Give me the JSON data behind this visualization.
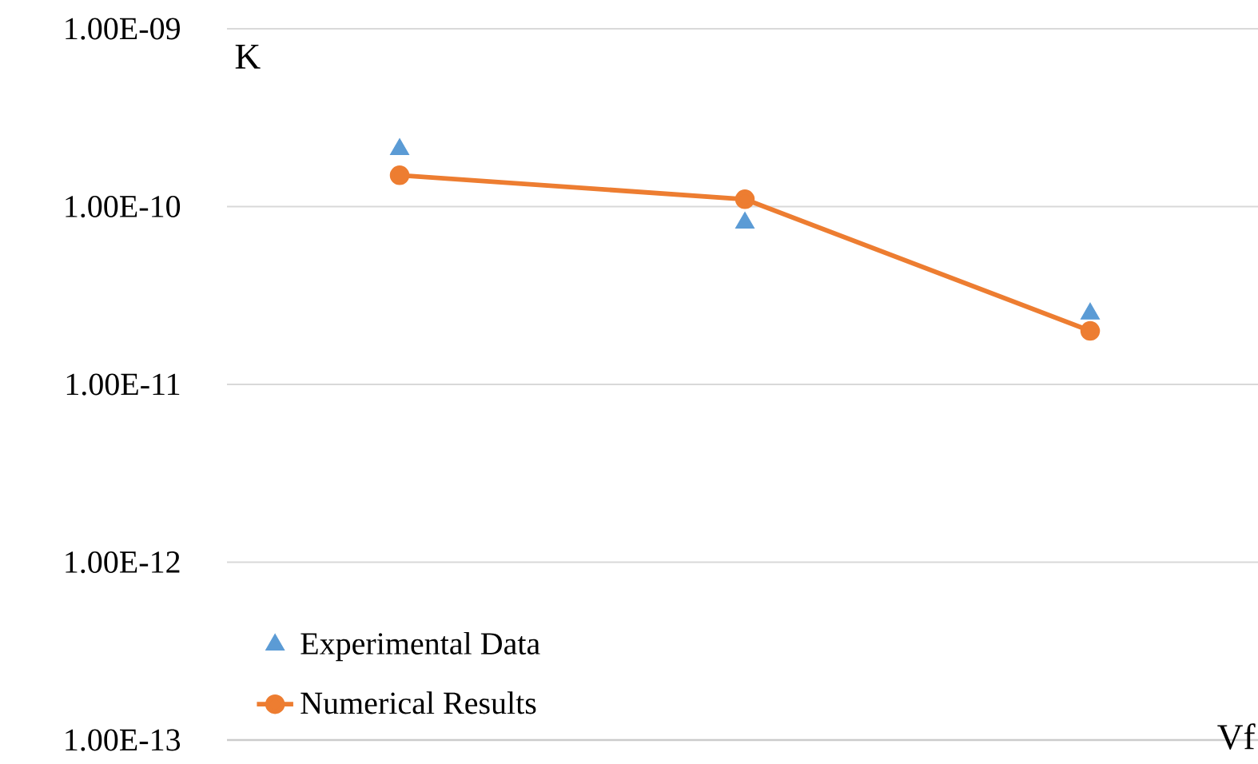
{
  "chart_data": {
    "type": "line",
    "ylabel": "K",
    "xlabel": "Vf",
    "categories": [
      null,
      null,
      null
    ],
    "log": "y",
    "ylim": [
      1e-13,
      1e-09
    ],
    "yticks": [
      {
        "value": 1e-13,
        "label": "1.00E-13"
      },
      {
        "value": 1e-12,
        "label": "1.00E-12"
      },
      {
        "value": 1e-11,
        "label": "1.00E-11"
      },
      {
        "value": 1e-10,
        "label": "1.00E-10"
      },
      {
        "value": 1e-09,
        "label": "1.00E-09"
      }
    ],
    "grid": "y",
    "legend": "bottom left",
    "series": [
      {
        "name": "Experimental Data",
        "type": "scatter",
        "marker": "triangle",
        "color": "#5b9bd5",
        "values": [
          2.1e-10,
          8.1e-11,
          2.5e-11
        ]
      },
      {
        "name": "Numerical Results",
        "marker": "circle",
        "color": "#ed7d31",
        "values": [
          1.5e-10,
          1.1e-10,
          2e-11
        ]
      }
    ]
  }
}
